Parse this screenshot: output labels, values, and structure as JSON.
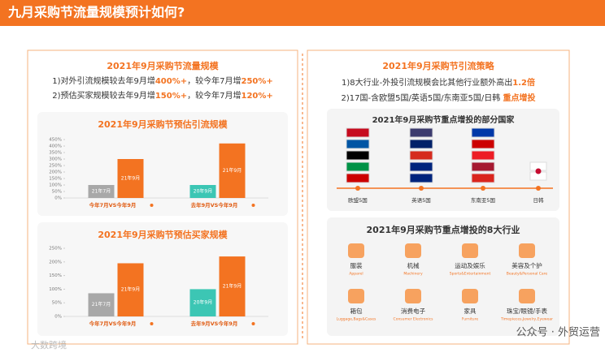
{
  "header": {
    "title": "九月采购节流量规模预计如何?"
  },
  "left": {
    "title": "2021年9月采购节流量规模",
    "lines": [
      [
        "1)对外引流规模较去年9月增",
        "400%+",
        "，较今年7月增",
        "250%+"
      ],
      [
        "2)预估买家规模较去年9月增",
        "150%+",
        "，较今年7月增",
        "120%+"
      ]
    ],
    "charts": [
      {
        "type": "bar",
        "title": "2021年9月采购节预估引流规模",
        "ylim": [
          0,
          450
        ],
        "yticks": [
          {
            "value": 0,
            "label": "0%"
          },
          {
            "value": 50,
            "label": "50%"
          },
          {
            "value": 100,
            "label": "100%"
          },
          {
            "value": 150,
            "label": "150%"
          },
          {
            "value": 200,
            "label": "200%"
          },
          {
            "value": 250,
            "label": "250%"
          },
          {
            "value": 300,
            "label": "300%"
          },
          {
            "value": 350,
            "label": "350%"
          },
          {
            "value": 400,
            "label": "400%"
          },
          {
            "value": 450,
            "label": "450%"
          }
        ],
        "categories": [
          {
            "name": "今年7月VS今年9月",
            "bars": [
              {
                "label": "21年7月",
                "value": 100,
                "color": "#a8a8a8"
              },
              {
                "label": "21年9月",
                "value": 300,
                "color": "#f37321"
              }
            ]
          },
          {
            "name": "去年9月VS今年9月",
            "bars": [
              {
                "label": "20年9月",
                "value": 100,
                "color": "#3cc6b4"
              },
              {
                "label": "21年9月",
                "value": 420,
                "color": "#f37321"
              }
            ]
          }
        ]
      },
      {
        "type": "bar",
        "title": "2021年9月采购节预估买家规模",
        "ylim": [
          0,
          250
        ],
        "yticks": [
          {
            "value": 0,
            "label": "0%"
          },
          {
            "value": 50,
            "label": "50%"
          },
          {
            "value": 100,
            "label": "100%"
          },
          {
            "value": 150,
            "label": "150%"
          },
          {
            "value": 200,
            "label": "200%"
          },
          {
            "value": 250,
            "label": "250%"
          }
        ],
        "categories": [
          {
            "name": "今年7月VS今年9月",
            "bars": [
              {
                "label": "21年7月",
                "value": 85,
                "color": "#a8a8a8"
              },
              {
                "label": "21年9月",
                "value": 195,
                "color": "#f37321"
              }
            ]
          },
          {
            "name": "去年9月VS今年9月",
            "bars": [
              {
                "label": "20年9月",
                "value": 100,
                "color": "#3cc6b4"
              },
              {
                "label": "21年9月",
                "value": 220,
                "color": "#f37321"
              }
            ]
          }
        ]
      }
    ]
  },
  "right": {
    "title": "2021年9月采购节引流策略",
    "lines": [
      [
        "1)8大行业-外投引流规模会比其他行业额外高出",
        "1.2倍"
      ],
      [
        "2)17国-含欧盟5国/英语5国/东南亚5国/日韩 ",
        "重点增投"
      ]
    ],
    "countries": {
      "title": "2021年9月采购节重点增投的部分国家",
      "groups": [
        "欧盟5国",
        "英语5国",
        "东南亚5国",
        "日韩"
      ]
    },
    "industries": {
      "title": "2021年9月采购节重点增投的8大行业",
      "items": [
        {
          "name": "服装",
          "en": "Apparel"
        },
        {
          "name": "机械",
          "en": "Machinery"
        },
        {
          "name": "运动及娱乐",
          "en": "Sports&Entertainment"
        },
        {
          "name": "美容及个护",
          "en": "Beauty&Personal Care"
        },
        {
          "name": "箱包",
          "en": "Luggage,Bags&Cases"
        },
        {
          "name": "消费电子",
          "en": "Consumer Electronics"
        },
        {
          "name": "家具",
          "en": "Furniture"
        },
        {
          "name": "珠宝/眼镜/手表",
          "en": "Timepieces,Jewelry,Eyewear"
        }
      ]
    }
  },
  "watermarks": [
    "大数跨境",
    "公众号 · 外贸运营"
  ]
}
